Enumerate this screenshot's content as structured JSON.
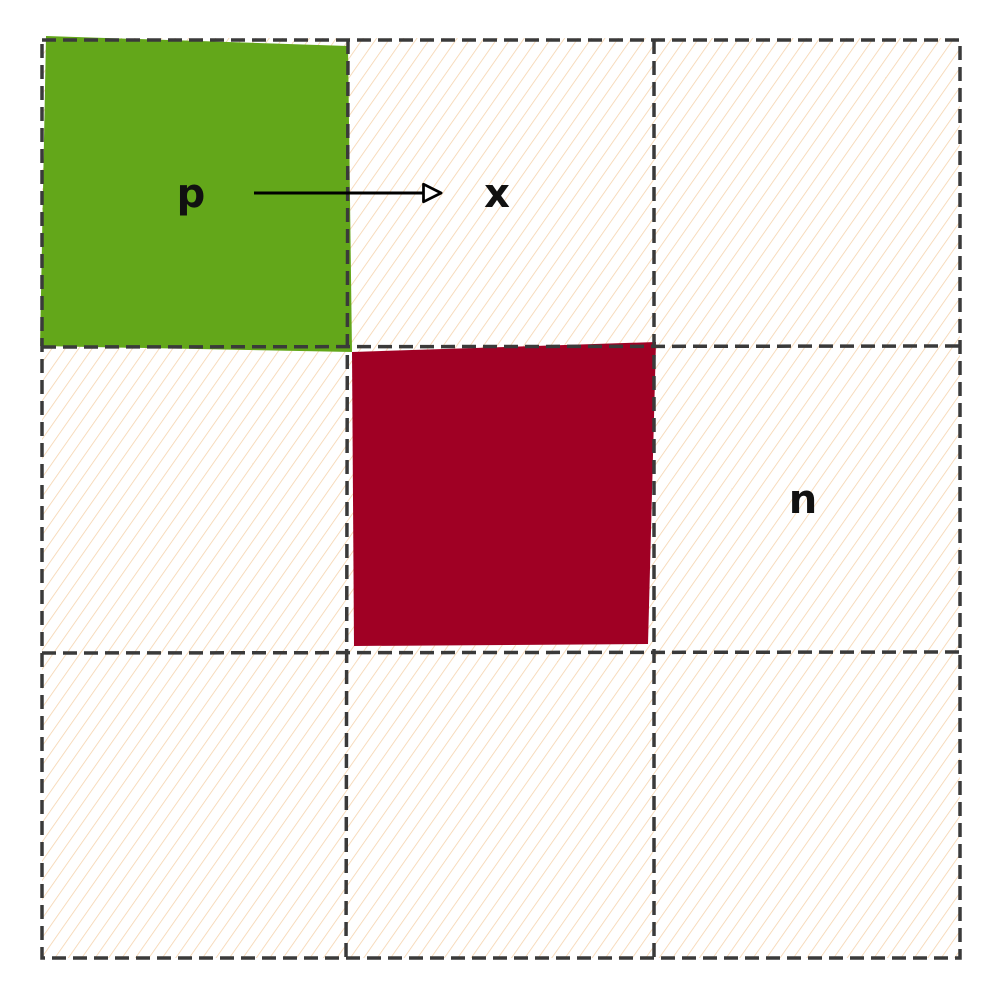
{
  "diagram": {
    "title": "",
    "grid": {
      "rows": 3,
      "cols": 3
    },
    "hatch_color": "#f5d3ad",
    "grid_line_color": "#3a3a3a",
    "cells": [
      {
        "name": "cell-r1c1",
        "row": 1,
        "col": 1,
        "fill": "#63a71a",
        "label": "p"
      },
      {
        "name": "cell-r1c2",
        "row": 1,
        "col": 2,
        "fill": "hatch",
        "label": "x"
      },
      {
        "name": "cell-r1c3",
        "row": 1,
        "col": 3,
        "fill": "hatch",
        "label": ""
      },
      {
        "name": "cell-r2c1",
        "row": 2,
        "col": 1,
        "fill": "hatch",
        "label": ""
      },
      {
        "name": "cell-r2c2",
        "row": 2,
        "col": 2,
        "fill": "#a00024",
        "label": ""
      },
      {
        "name": "cell-r2c3",
        "row": 2,
        "col": 3,
        "fill": "hatch",
        "label": "n"
      },
      {
        "name": "cell-r3c1",
        "row": 3,
        "col": 1,
        "fill": "hatch",
        "label": ""
      },
      {
        "name": "cell-r3c2",
        "row": 3,
        "col": 2,
        "fill": "hatch",
        "label": ""
      },
      {
        "name": "cell-r3c3",
        "row": 3,
        "col": 3,
        "fill": "hatch",
        "label": ""
      }
    ],
    "arrow": {
      "from": "p",
      "to": "x",
      "color": "#000000"
    }
  }
}
